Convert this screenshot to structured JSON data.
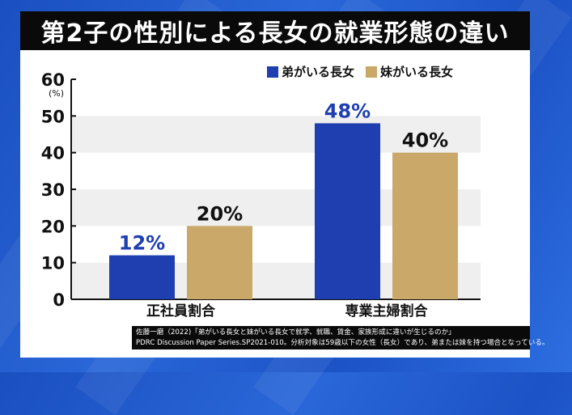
{
  "title": "第2子の性別による長女の就業形態の違い",
  "colors": {
    "brother": "#1f3eb0",
    "sister": "#c9a86a",
    "title_bg": "#0a0a0a",
    "background": "#2359cc"
  },
  "chart_data": {
    "type": "bar",
    "categories": [
      "正社員割合",
      "専業主婦割合"
    ],
    "series": [
      {
        "name": "弟がいる長女",
        "values": [
          12,
          48
        ],
        "labels": [
          "12%",
          "48%"
        ]
      },
      {
        "name": "妹がいる長女",
        "values": [
          20,
          40
        ],
        "labels": [
          "20%",
          "40%"
        ]
      }
    ],
    "yunit": "(%)",
    "ylim": [
      0,
      60
    ],
    "yticks": [
      "0",
      "10",
      "20",
      "30",
      "40",
      "50",
      "60"
    ],
    "grid": "alternating bands",
    "legend": "top-right"
  },
  "source": {
    "line1": "佐藤一磨（2022)「弟がいる長女と妹がいる長女で就学、就職、賃金、家族形成に違いが生じるのか」",
    "line2": "PDRC Discussion Paper Series.SP2021-010。分析対象は59歳以下の女性（長女）であり、弟または妹を持つ場合となっている。"
  }
}
